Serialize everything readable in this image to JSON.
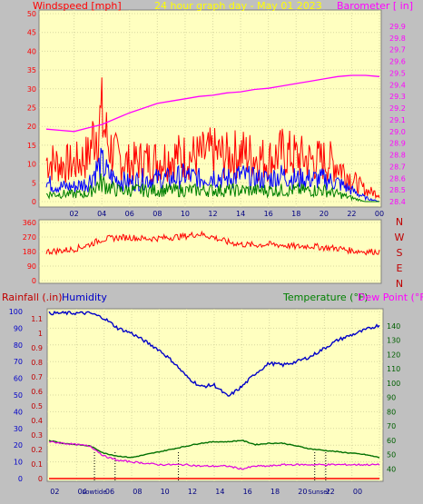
{
  "chart_data": [
    {
      "type": "line",
      "title": "24 hour graph day - May 01 2023",
      "left_axis_label": "Windspeed [mph]",
      "right_axis_label": "Barometer [ in]",
      "x_ticks": [
        "02",
        "04",
        "06",
        "08",
        "10",
        "12",
        "14",
        "16",
        "18",
        "20",
        "22",
        "00"
      ],
      "left_ticks": [
        0,
        5,
        10,
        15,
        20,
        25,
        30,
        35,
        40,
        45,
        50
      ],
      "right_ticks": [
        28.4,
        28.5,
        28.6,
        28.7,
        28.8,
        28.9,
        29.0,
        29.1,
        29.2,
        29.3,
        29.4,
        29.5,
        29.6,
        29.7,
        29.8,
        29.9
      ],
      "ylim_left": [
        0,
        50
      ],
      "ylim_right": [
        28.4,
        29.9
      ],
      "colors": {
        "gust": "#ff0000",
        "wind": "#0000ff",
        "avg_wind": "#008000",
        "barometer": "#ff00ff"
      },
      "barometer": {
        "x": [
          0,
          1,
          2,
          3,
          4,
          5,
          6,
          7,
          8,
          9,
          10,
          11,
          12,
          13,
          14,
          15,
          16,
          17,
          18,
          19,
          20,
          21,
          22,
          23,
          24
        ],
        "y": [
          29.02,
          29.01,
          29.0,
          29.03,
          29.06,
          29.11,
          29.16,
          29.2,
          29.24,
          29.26,
          29.28,
          29.3,
          29.31,
          29.33,
          29.34,
          29.36,
          29.37,
          29.39,
          29.41,
          29.43,
          29.45,
          29.47,
          29.48,
          29.48,
          29.47
        ]
      },
      "wind_gust": {
        "x": [
          0,
          1,
          2,
          3,
          3.5,
          4,
          4.5,
          5,
          6,
          7,
          8,
          9,
          10,
          11,
          12,
          13,
          14,
          15,
          16,
          17,
          18,
          19,
          20,
          21,
          22,
          23,
          24
        ],
        "y": [
          11,
          10,
          10,
          12,
          19,
          22,
          15,
          12,
          10,
          11,
          11,
          12,
          12,
          12,
          13,
          12,
          13,
          12,
          11,
          13,
          12,
          11,
          11,
          10,
          6,
          3,
          2
        ]
      },
      "wind_speed": {
        "x": [
          0,
          1,
          2,
          3,
          3.5,
          4,
          4.5,
          5,
          6,
          7,
          8,
          9,
          10,
          11,
          12,
          13,
          14,
          15,
          16,
          17,
          18,
          19,
          20,
          21,
          22,
          23,
          24
        ],
        "y": [
          5,
          4,
          4,
          5,
          8,
          10,
          7,
          6,
          5,
          6,
          6,
          6,
          7,
          6,
          7,
          6,
          7,
          6,
          6,
          7,
          6,
          6,
          6,
          5,
          3,
          1,
          0
        ]
      },
      "avg_wind": {
        "x": [
          0,
          1,
          2,
          3,
          3.5,
          4,
          4.5,
          5,
          6,
          7,
          8,
          9,
          10,
          11,
          12,
          13,
          14,
          15,
          16,
          17,
          18,
          19,
          20,
          21,
          22,
          23,
          24
        ],
        "y": [
          2,
          2,
          2,
          2,
          4,
          5,
          4,
          3,
          3,
          3,
          3,
          3,
          3,
          3,
          3,
          3,
          3,
          3,
          3,
          3,
          3,
          3,
          3,
          2,
          1,
          0,
          0
        ]
      }
    },
    {
      "type": "line",
      "right_labels": [
        "N",
        "W",
        "S",
        "E",
        "N"
      ],
      "ticks": [
        360,
        270,
        180,
        90,
        0
      ],
      "ylim": [
        0,
        360
      ],
      "color": "#ff0000",
      "wind_direction": {
        "x": [
          0,
          1,
          2,
          3,
          4,
          5,
          6,
          7,
          8,
          9,
          10,
          11,
          12,
          13,
          14,
          15,
          16,
          17,
          18,
          19,
          20,
          21,
          22,
          23,
          24
        ],
        "y": [
          180,
          185,
          195,
          220,
          255,
          265,
          268,
          260,
          262,
          268,
          275,
          290,
          270,
          240,
          225,
          220,
          225,
          220,
          210,
          215,
          205,
          200,
          185,
          180,
          180
        ]
      }
    },
    {
      "type": "line",
      "left_axis_label": "Rainfall (.in)",
      "humidity_label": "Humidity",
      "right_axis_label": "Temperature (°F)",
      "dewpoint_label": "Dew Point (°F)",
      "x_ticks": [
        "02",
        "04",
        "06",
        "08",
        "10",
        "12",
        "14",
        "16",
        "18",
        "20",
        "22",
        "00"
      ],
      "markers": [
        "Lowtide",
        "Sunset"
      ],
      "humidity_ticks": [
        0,
        10,
        20,
        30,
        40,
        50,
        60,
        70,
        80,
        90,
        100
      ],
      "rain_ticks": [
        0,
        0.1,
        0.2,
        0.3,
        0.4,
        0.5,
        0.6,
        0.7,
        0.8,
        0.9,
        1,
        1.1
      ],
      "temperature_ticks": [
        40,
        50,
        60,
        70,
        80,
        90,
        100,
        110,
        120,
        130,
        140
      ],
      "ylim_humidity": [
        0,
        100
      ],
      "ylim_rain": [
        0,
        1.15
      ],
      "ylim_temperature": [
        33.3,
        150
      ],
      "colors": {
        "humidity": "#0000c8",
        "temperature": "#007000",
        "dewpoint": "#e000e0",
        "rain": "#ff0000"
      },
      "humidity": {
        "x": [
          0,
          1,
          2,
          3,
          4,
          5,
          6,
          7,
          8,
          9,
          10,
          11,
          12,
          13,
          14,
          15,
          16,
          17,
          18,
          19,
          20,
          21,
          22,
          23,
          24
        ],
        "y": [
          99,
          99,
          99,
          99,
          96,
          90,
          87,
          82,
          77,
          70,
          61,
          55,
          56,
          49,
          55,
          63,
          69,
          68,
          70,
          73,
          78,
          83,
          86,
          89,
          92
        ]
      },
      "temperature": {
        "x": [
          0,
          1,
          2,
          3,
          4,
          5,
          6,
          7,
          8,
          9,
          10,
          11,
          12,
          13,
          14,
          15,
          16,
          17,
          18,
          19,
          20,
          21,
          22,
          23,
          24
        ],
        "y": [
          60,
          58,
          57,
          56,
          51,
          49,
          48,
          50,
          52,
          54,
          56,
          58,
          59,
          59,
          60,
          57,
          58,
          58,
          56,
          54,
          53,
          52,
          51,
          50,
          48
        ]
      },
      "dewpoint": {
        "x": [
          0,
          1,
          2,
          3,
          4,
          5,
          6,
          7,
          8,
          9,
          10,
          11,
          12,
          13,
          14,
          15,
          16,
          17,
          18,
          19,
          20,
          21,
          22,
          23,
          24
        ],
        "y": [
          59,
          58,
          57,
          56,
          49,
          46,
          45,
          44,
          43,
          43,
          43,
          42,
          42,
          42,
          40,
          42,
          42,
          43,
          43,
          43,
          43,
          43,
          43,
          43,
          43
        ]
      },
      "rainfall": {
        "x": [
          0,
          24
        ],
        "y": [
          0,
          0
        ]
      }
    }
  ]
}
